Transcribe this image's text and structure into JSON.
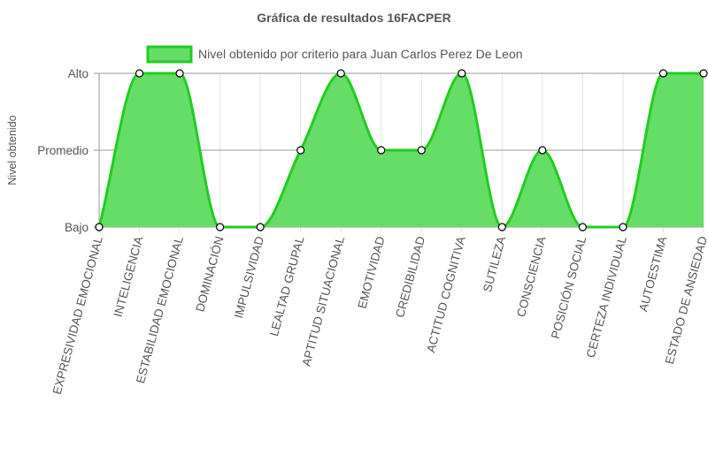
{
  "chart_data": {
    "type": "area",
    "title": "Gráfica de resultados 16FACPER",
    "ylabel": "Nivel obtenido",
    "xlabel": "",
    "y_levels": [
      "Bajo",
      "Promedio",
      "Alto"
    ],
    "ylim": [
      0,
      2
    ],
    "grid": true,
    "legend_position": "top",
    "categories": [
      "EXPRESIVIDAD EMOCIONAL",
      "INTELIGENCIA",
      "ESTABILIDAD EMOCIONAL",
      "DOMINACIÓN",
      "IMPULSIVIDAD",
      "LEALTAD GRUPAL",
      "APTITUD SITUACIONAL",
      "EMOTIVIDAD",
      "CREDIBILIDAD",
      "ACTITUD COGNITIVA",
      "SUTILEZA",
      "CONSCIENCIA",
      "POSICIÓN SOCIAL",
      "CERTEZA INDIVIDUAL",
      "AUTOESTIMA",
      "ESTADO DE ANSIEDAD"
    ],
    "series": [
      {
        "name": "Nivel obtenido por criterio para Juan Carlos Perez De Leon",
        "values": [
          0,
          2,
          2,
          0,
          0,
          1,
          2,
          1,
          1,
          2,
          0,
          1,
          0,
          0,
          2,
          2
        ],
        "values_text": [
          "Bajo",
          "Alto",
          "Alto",
          "Bajo",
          "Bajo",
          "Promedio",
          "Alto",
          "Promedio",
          "Promedio",
          "Alto",
          "Bajo",
          "Promedio",
          "Bajo",
          "Bajo",
          "Alto",
          "Alto"
        ],
        "fill_color": "#66dd66",
        "line_color": "#22cc22"
      }
    ]
  }
}
